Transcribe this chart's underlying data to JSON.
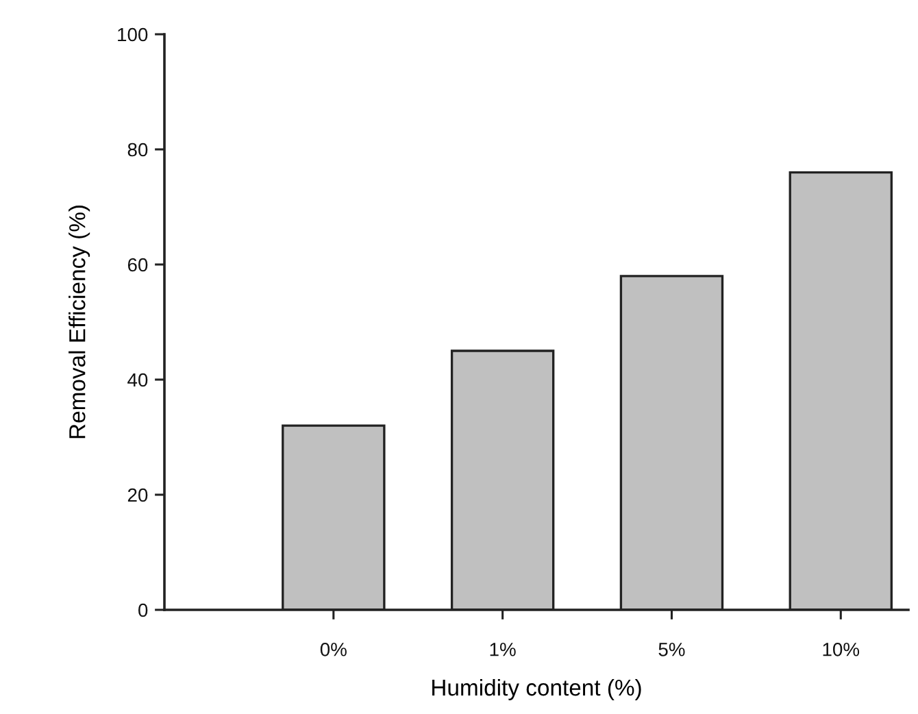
{
  "chart_data": {
    "type": "bar",
    "xlabel": "Humidity content (%)",
    "ylabel": "Removal Efficiency (%)",
    "categories": [
      "0%",
      "1%",
      "5%",
      "10%"
    ],
    "values": [
      32,
      45,
      58,
      76
    ],
    "color": "#c0c0c0",
    "ylim": [
      0,
      100
    ],
    "yticks": [
      0,
      20,
      40,
      60,
      80,
      100
    ]
  }
}
